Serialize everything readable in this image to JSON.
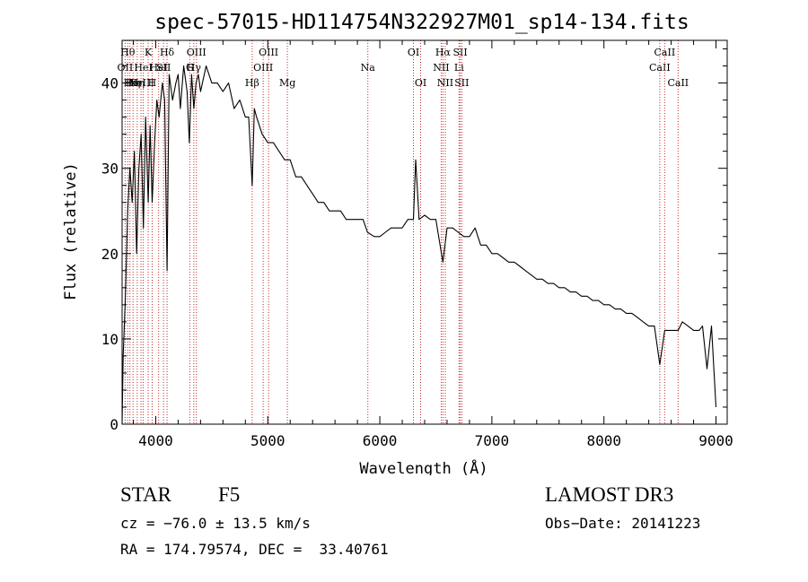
{
  "chart_data": {
    "type": "line",
    "title": "spec-57015-HD114754N322927M01_sp14-134.fits",
    "xlabel": "Wavelength (Å)",
    "ylabel": "Flux (relative)",
    "xlim": [
      3700,
      9100
    ],
    "ylim": [
      0,
      45
    ],
    "xticks": [
      4000,
      5000,
      6000,
      7000,
      8000,
      9000
    ],
    "yticks": [
      0,
      10,
      20,
      30,
      40
    ],
    "grid": false,
    "series": [
      {
        "color": "#000000",
        "x": [
          3700,
          3710,
          3730,
          3750,
          3770,
          3790,
          3810,
          3830,
          3850,
          3870,
          3890,
          3910,
          3933,
          3950,
          3968,
          3990,
          4010,
          4030,
          4060,
          4080,
          4101,
          4120,
          4150,
          4180,
          4200,
          4220,
          4250,
          4280,
          4300,
          4320,
          4340,
          4360,
          4380,
          4400,
          4450,
          4500,
          4550,
          4600,
          4650,
          4700,
          4750,
          4800,
          4830,
          4861,
          4880,
          4900,
          4950,
          5000,
          5050,
          5100,
          5150,
          5200,
          5250,
          5300,
          5350,
          5400,
          5450,
          5500,
          5550,
          5600,
          5650,
          5700,
          5750,
          5800,
          5850,
          5890,
          5950,
          6000,
          6050,
          6100,
          6150,
          6200,
          6250,
          6300,
          6320,
          6350,
          6400,
          6450,
          6500,
          6563,
          6600,
          6650,
          6700,
          6750,
          6800,
          6850,
          6900,
          6950,
          7000,
          7050,
          7100,
          7150,
          7200,
          7250,
          7300,
          7350,
          7400,
          7450,
          7500,
          7550,
          7600,
          7650,
          7700,
          7750,
          7800,
          7850,
          7900,
          7950,
          8000,
          8050,
          8100,
          8150,
          8200,
          8250,
          8300,
          8350,
          8400,
          8450,
          8498,
          8542,
          8600,
          8662,
          8700,
          8750,
          8800,
          8850,
          8880,
          8920,
          8960,
          9000
        ],
        "y": [
          0,
          8,
          15,
          25,
          30,
          26,
          32,
          20,
          30,
          34,
          23,
          36,
          26,
          35,
          26,
          33,
          38,
          36,
          40,
          38,
          18,
          41,
          38,
          40,
          41,
          37,
          42,
          39,
          33,
          41,
          37,
          40,
          41,
          39,
          42,
          40,
          40,
          39,
          40,
          37,
          38,
          36,
          36,
          28,
          37,
          36,
          34,
          33,
          33,
          32,
          31,
          31,
          29,
          29,
          28,
          27,
          26,
          26,
          25,
          25,
          25,
          24,
          24,
          24,
          24,
          22.5,
          22,
          22,
          22.5,
          23,
          23,
          23,
          24,
          24,
          31,
          24,
          24.5,
          24,
          24,
          19,
          23,
          23,
          22.5,
          22,
          22,
          23,
          21,
          21,
          20,
          20,
          19.5,
          19,
          19,
          18.5,
          18,
          17.5,
          17,
          17,
          16.5,
          16.5,
          16,
          16,
          15.5,
          15.5,
          15,
          15,
          14.5,
          14.5,
          14,
          14,
          13.5,
          13.5,
          13,
          13,
          12.5,
          12,
          11.5,
          11.5,
          7,
          11,
          11,
          11,
          12,
          11.5,
          11,
          11,
          11.5,
          6.5,
          11.5,
          2
        ]
      }
    ],
    "lines": [
      {
        "x": 3727,
        "label": "OII",
        "row": 2
      },
      {
        "x": 3750,
        "label": "Hθ",
        "row": 1
      },
      {
        "x": 3770,
        "label": "Hι",
        "row": 3
      },
      {
        "x": 3798,
        "label": "Hη",
        "row": 3
      },
      {
        "x": 3835,
        "label": "Hη",
        "row": 3
      },
      {
        "x": 3869,
        "label": "NeIII",
        "row": 3
      },
      {
        "x": 3889,
        "label": "HeI",
        "row": 2
      },
      {
        "x": 3933,
        "label": "K",
        "row": 1
      },
      {
        "x": 3968,
        "label": "H",
        "row": 3
      },
      {
        "x": 4026,
        "label": "HeI",
        "row": 2
      },
      {
        "x": 4070,
        "label": "SII",
        "row": 2
      },
      {
        "x": 4101,
        "label": "Hδ",
        "row": 1
      },
      {
        "x": 4304,
        "label": "G",
        "row": 2
      },
      {
        "x": 4340,
        "label": "Hγ",
        "row": 2
      },
      {
        "x": 4363,
        "label": "OIII",
        "row": 1
      },
      {
        "x": 4861,
        "label": "Hβ",
        "row": 3
      },
      {
        "x": 4959,
        "label": "OIII",
        "row": 2
      },
      {
        "x": 5007,
        "label": "OIII",
        "row": 1
      },
      {
        "x": 5175,
        "label": "Mg",
        "row": 3
      },
      {
        "x": 5893,
        "label": "Na",
        "row": 2
      },
      {
        "x": 6300,
        "label": "OI",
        "row": 1
      },
      {
        "x": 6364,
        "label": "OI",
        "row": 3
      },
      {
        "x": 6548,
        "label": "NII",
        "row": 2
      },
      {
        "x": 6563,
        "label": "Hα",
        "row": 1
      },
      {
        "x": 6584,
        "label": "NII",
        "row": 3
      },
      {
        "x": 6707,
        "label": "Li",
        "row": 2
      },
      {
        "x": 6717,
        "label": "SII",
        "row": 1
      },
      {
        "x": 6731,
        "label": "SII",
        "row": 3
      },
      {
        "x": 8498,
        "label": "CaII",
        "row": 2
      },
      {
        "x": 8542,
        "label": "CaII",
        "row": 1
      },
      {
        "x": 8662,
        "label": "CaII",
        "row": 3
      }
    ]
  },
  "info": {
    "object_class": "STAR",
    "subclass": "F5",
    "survey": "LAMOST DR3",
    "cz": "cz = −76.0 ± 13.5 km/s",
    "obs_date": "Obs−Date: 20141223",
    "coords": "RA = 174.79574, DEC =  33.40761"
  }
}
